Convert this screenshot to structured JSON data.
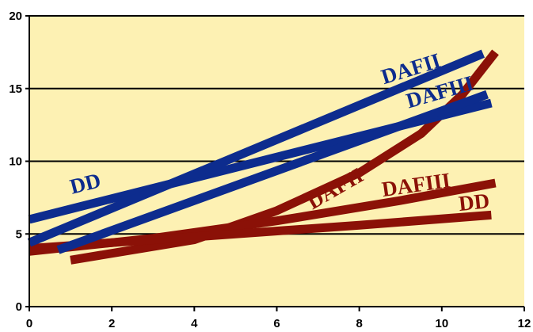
{
  "chart_data": {
    "type": "line",
    "title": "",
    "xlabel": "",
    "ylabel": "",
    "xlim": [
      0,
      12
    ],
    "ylim": [
      0,
      20
    ],
    "x_ticks": [
      "0",
      "2",
      "4",
      "6",
      "8",
      "10",
      "12"
    ],
    "y_ticks": [
      "0",
      "5",
      "10",
      "15",
      "20"
    ],
    "grid": "horizontal",
    "background_color": "#fdf1b3",
    "colors": {
      "blue": "#0d2c8e",
      "red": "#8b1107"
    },
    "series": [
      {
        "name": "DD",
        "color": "#0d2c8e",
        "points": [
          [
            0,
            6.0
          ],
          [
            11.2,
            14.0
          ]
        ]
      },
      {
        "name": "DAFII",
        "color": "#0d2c8e",
        "points": [
          [
            0,
            4.4
          ],
          [
            11.0,
            17.4
          ]
        ]
      },
      {
        "name": "DAFIII",
        "color": "#0d2c8e",
        "points": [
          [
            0.7,
            3.9
          ],
          [
            11.1,
            14.6
          ]
        ]
      },
      {
        "name": "DAFII",
        "color": "#8b1107",
        "points": [
          [
            1.0,
            3.2
          ],
          [
            4.0,
            4.6
          ],
          [
            6.0,
            6.6
          ],
          [
            8.0,
            9.2
          ],
          [
            9.5,
            11.9
          ],
          [
            10.5,
            14.6
          ],
          [
            11.3,
            17.5
          ]
        ]
      },
      {
        "name": "DAFIII",
        "color": "#8b1107",
        "points": [
          [
            0,
            3.8
          ],
          [
            3.0,
            4.7
          ],
          [
            6.0,
            5.9
          ],
          [
            9.0,
            7.3
          ],
          [
            11.3,
            8.5
          ]
        ]
      },
      {
        "name": "DD",
        "color": "#8b1107",
        "points": [
          [
            0,
            4.0
          ],
          [
            4.0,
            4.8
          ],
          [
            8.0,
            5.6
          ],
          [
            11.2,
            6.3
          ]
        ]
      }
    ],
    "annotations": [
      {
        "text": "DD",
        "color": "#0d2c8e",
        "x": 1.4,
        "y": 8.0,
        "rotate": -14
      },
      {
        "text": "DAFII",
        "color": "#0d2c8e",
        "x": 9.3,
        "y": 15.9,
        "rotate": -17
      },
      {
        "text": "DAFIII",
        "color": "#0d2c8e",
        "x": 10.0,
        "y": 14.3,
        "rotate": -16
      },
      {
        "text": "DAFII",
        "color": "#8b1107",
        "x": 7.5,
        "y": 7.7,
        "rotate": -30
      },
      {
        "text": "DAFIII",
        "color": "#8b1107",
        "x": 9.4,
        "y": 7.9,
        "rotate": -8
      },
      {
        "text": "DD",
        "color": "#8b1107",
        "x": 10.8,
        "y": 6.7,
        "rotate": -6
      }
    ]
  }
}
